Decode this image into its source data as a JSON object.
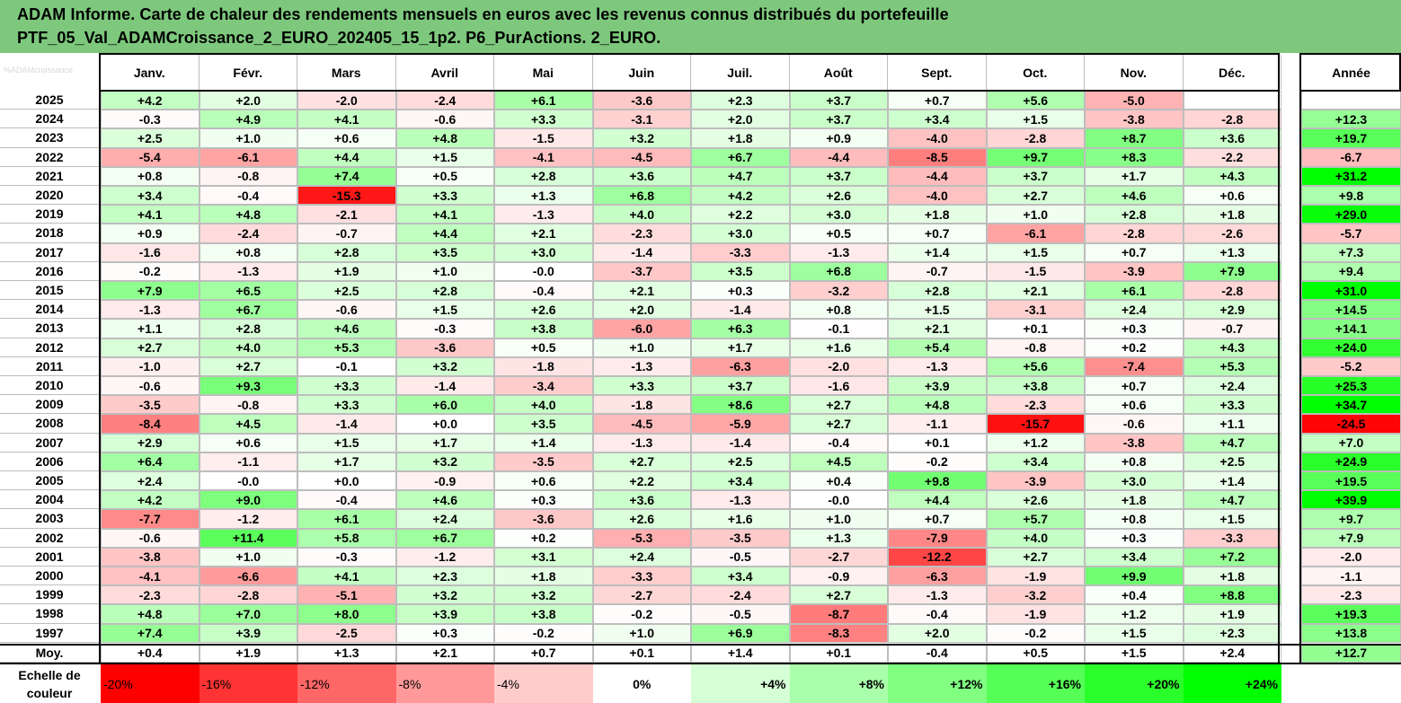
{
  "header": {
    "title_line1": "ADAM Informe. Carte de chaleur des rendements mensuels en euros avec les revenus connus distribués du portefeuille",
    "title_line2": "PTF_05_Val_ADAMCroissance_2_EURO_202405_15_1p2. P6_PurActions. 2_EURO.",
    "corner_text": "%ADAMcroissance"
  },
  "colors": {
    "header_bg": "#7dc87d",
    "negative_strong": "#ff0000",
    "neutral": "#ffffff",
    "positive_strong": "#00ff00"
  },
  "chart_data": {
    "type": "heatmap",
    "title": "ADAM Informe. Carte de chaleur des rendements mensuels en euros avec les revenus connus distribués du portefeuille PTF_05_Val_ADAMCroissance_2_EURO_202405_15_1p2. P6_PurActions. 2_EURO.",
    "columns": [
      "Janv.",
      "Févr.",
      "Mars",
      "Avril",
      "Mai",
      "Juin",
      "Juil.",
      "Août",
      "Sept.",
      "Oct.",
      "Nov.",
      "Déc."
    ],
    "year_column": "Année",
    "rows": [
      {
        "year": "2025",
        "values": [
          4.2,
          2.0,
          -2.0,
          -2.4,
          6.1,
          -3.6,
          2.3,
          3.7,
          0.7,
          5.6,
          -5.0,
          null
        ],
        "annual": null
      },
      {
        "year": "2024",
        "values": [
          -0.3,
          4.9,
          4.1,
          -0.6,
          3.3,
          -3.1,
          2.0,
          3.7,
          3.4,
          1.5,
          -3.8,
          -2.8
        ],
        "annual": 12.3
      },
      {
        "year": "2023",
        "values": [
          2.5,
          1.0,
          0.6,
          4.8,
          -1.5,
          3.2,
          1.8,
          0.9,
          -4.0,
          -2.8,
          8.7,
          3.6
        ],
        "annual": 19.7
      },
      {
        "year": "2022",
        "values": [
          -5.4,
          -6.1,
          4.4,
          1.5,
          -4.1,
          -4.5,
          6.7,
          -4.4,
          -8.5,
          9.7,
          8.3,
          -2.2
        ],
        "annual": -6.7
      },
      {
        "year": "2021",
        "values": [
          0.8,
          -0.8,
          7.4,
          0.5,
          2.8,
          3.6,
          4.7,
          3.7,
          -4.4,
          3.7,
          1.7,
          4.3
        ],
        "annual": 31.2
      },
      {
        "year": "2020",
        "values": [
          3.4,
          -0.4,
          -15.3,
          3.3,
          1.3,
          6.8,
          4.2,
          2.6,
          -4.0,
          2.7,
          4.6,
          0.6
        ],
        "annual": 9.8
      },
      {
        "year": "2019",
        "values": [
          4.1,
          4.8,
          -2.1,
          4.1,
          -1.3,
          4.0,
          2.2,
          3.0,
          1.8,
          1.0,
          2.8,
          1.8
        ],
        "annual": 29.0
      },
      {
        "year": "2018",
        "values": [
          0.9,
          -2.4,
          -0.7,
          4.4,
          2.1,
          -2.3,
          3.0,
          0.5,
          0.7,
          -6.1,
          -2.8,
          -2.6
        ],
        "annual": -5.7
      },
      {
        "year": "2017",
        "values": [
          -1.6,
          0.8,
          2.8,
          3.5,
          3.0,
          -1.4,
          -3.3,
          -1.3,
          1.4,
          1.5,
          0.7,
          1.3
        ],
        "annual": 7.3
      },
      {
        "year": "2016",
        "values": [
          -0.2,
          -1.3,
          1.9,
          1.0,
          -0.0,
          -3.7,
          3.5,
          6.8,
          -0.7,
          -1.5,
          -3.9,
          7.9
        ],
        "annual": 9.4
      },
      {
        "year": "2015",
        "values": [
          7.9,
          6.5,
          2.5,
          2.8,
          -0.4,
          2.1,
          0.3,
          -3.2,
          2.8,
          2.1,
          6.1,
          -2.8
        ],
        "annual": 31.0
      },
      {
        "year": "2014",
        "values": [
          -1.3,
          6.7,
          -0.6,
          1.5,
          2.6,
          2.0,
          -1.4,
          0.8,
          1.5,
          -3.1,
          2.4,
          2.9
        ],
        "annual": 14.5
      },
      {
        "year": "2013",
        "values": [
          1.1,
          2.8,
          4.6,
          -0.3,
          3.8,
          -6.0,
          6.3,
          -0.1,
          2.1,
          0.1,
          0.3,
          -0.7
        ],
        "annual": 14.1
      },
      {
        "year": "2012",
        "values": [
          2.7,
          4.0,
          5.3,
          -3.6,
          0.5,
          1.0,
          1.7,
          1.6,
          5.4,
          -0.8,
          0.2,
          4.3
        ],
        "annual": 24.0
      },
      {
        "year": "2011",
        "values": [
          -1.0,
          2.7,
          -0.1,
          3.2,
          -1.8,
          -1.3,
          -6.3,
          -2.0,
          -1.3,
          5.6,
          -7.4,
          5.3
        ],
        "annual": -5.2
      },
      {
        "year": "2010",
        "values": [
          -0.6,
          9.3,
          3.3,
          -1.4,
          -3.4,
          3.3,
          3.7,
          -1.6,
          3.9,
          3.8,
          0.7,
          2.4
        ],
        "annual": 25.3
      },
      {
        "year": "2009",
        "values": [
          -3.5,
          -0.8,
          3.3,
          6.0,
          4.0,
          -1.8,
          8.6,
          2.7,
          4.8,
          -2.3,
          0.6,
          3.3
        ],
        "annual": 34.7
      },
      {
        "year": "2008",
        "values": [
          -8.4,
          4.5,
          -1.4,
          0.0,
          3.5,
          -4.5,
          -5.9,
          2.7,
          -1.1,
          -15.7,
          -0.6,
          1.1
        ],
        "annual": -24.5
      },
      {
        "year": "2007",
        "values": [
          2.9,
          0.6,
          1.5,
          1.7,
          1.4,
          -1.3,
          -1.4,
          -0.4,
          0.1,
          1.2,
          -3.8,
          4.7
        ],
        "annual": 7.0
      },
      {
        "year": "2006",
        "values": [
          6.4,
          -1.1,
          1.7,
          3.2,
          -3.5,
          2.7,
          2.5,
          4.5,
          -0.2,
          3.4,
          0.8,
          2.5
        ],
        "annual": 24.9
      },
      {
        "year": "2005",
        "values": [
          2.4,
          -0.0,
          0.0,
          -0.9,
          0.6,
          2.2,
          3.4,
          0.4,
          9.8,
          -3.9,
          3.0,
          1.4
        ],
        "annual": 19.5
      },
      {
        "year": "2004",
        "values": [
          4.2,
          9.0,
          -0.4,
          4.6,
          0.3,
          3.6,
          -1.3,
          -0.0,
          4.4,
          2.6,
          1.8,
          4.7
        ],
        "annual": 39.9
      },
      {
        "year": "2003",
        "values": [
          -7.7,
          -1.2,
          6.1,
          2.4,
          -3.6,
          2.6,
          1.6,
          1.0,
          0.7,
          5.7,
          0.8,
          1.5
        ],
        "annual": 9.7
      },
      {
        "year": "2002",
        "values": [
          -0.6,
          11.4,
          5.8,
          6.7,
          0.2,
          -5.3,
          -3.5,
          1.3,
          -7.9,
          4.0,
          0.3,
          -3.3
        ],
        "annual": 7.9
      },
      {
        "year": "2001",
        "values": [
          -3.8,
          1.0,
          -0.3,
          -1.2,
          3.1,
          2.4,
          -0.5,
          -2.7,
          -12.2,
          2.7,
          3.4,
          7.2
        ],
        "annual": -2.0
      },
      {
        "year": "2000",
        "values": [
          -4.1,
          -6.6,
          4.1,
          2.3,
          1.8,
          -3.3,
          3.4,
          -0.9,
          -6.3,
          -1.9,
          9.9,
          1.8
        ],
        "annual": -1.1
      },
      {
        "year": "1999",
        "values": [
          -2.3,
          -2.8,
          -5.1,
          3.2,
          3.2,
          -2.7,
          -2.4,
          2.7,
          -1.3,
          -3.2,
          0.4,
          8.8
        ],
        "annual": -2.3
      },
      {
        "year": "1998",
        "values": [
          4.8,
          7.0,
          8.0,
          3.9,
          3.8,
          -0.2,
          -0.5,
          -8.7,
          -0.4,
          -1.9,
          1.2,
          1.9
        ],
        "annual": 19.3
      },
      {
        "year": "1997",
        "values": [
          7.4,
          3.9,
          -2.5,
          0.3,
          -0.2,
          1.0,
          6.9,
          -8.3,
          2.0,
          -0.2,
          1.5,
          2.3
        ],
        "annual": 13.8
      }
    ],
    "average": {
      "label": "Moy.",
      "values": [
        0.4,
        1.9,
        1.3,
        2.1,
        0.7,
        0.1,
        1.4,
        0.1,
        -0.4,
        0.5,
        1.5,
        2.4
      ],
      "annual": 12.7
    },
    "color_scale": {
      "label": "Echelle de couleur",
      "stops": [
        -20,
        -16,
        -12,
        -8,
        -4,
        0,
        4,
        8,
        12,
        16,
        20,
        24
      ],
      "labels": [
        "-20%",
        "-16%",
        "-12%",
        "-8%",
        "-4%",
        "0%",
        "+4%",
        "+8%",
        "+12%",
        "+16%",
        "+20%",
        "+24%"
      ]
    }
  }
}
